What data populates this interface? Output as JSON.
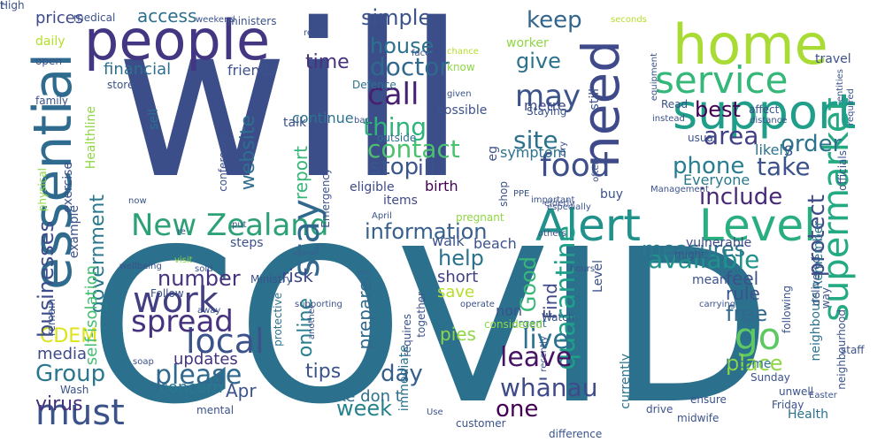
{
  "words": [
    {
      "text": "COVID",
      "color": "#2b708d"
    },
    {
      "text": "will",
      "color": "#3c4e8a"
    },
    {
      "text": "people",
      "color": "#433682"
    },
    {
      "text": "essential",
      "color": "#2f6b8e"
    },
    {
      "text": "home",
      "color": "#a8db34"
    },
    {
      "text": "need",
      "color": "#3f4a8a"
    },
    {
      "text": "supermarket",
      "color": "#24aa83"
    },
    {
      "text": "support",
      "color": "#1f9e89"
    },
    {
      "text": "Alert",
      "color": "#21918c"
    },
    {
      "text": "Level",
      "color": "#29af7f"
    },
    {
      "text": "New Zealand",
      "color": "#2da176"
    },
    {
      "text": "must",
      "color": "#3b528b"
    },
    {
      "text": "service",
      "color": "#35b779"
    },
    {
      "text": "food",
      "color": "#3c4f8a"
    },
    {
      "text": "call",
      "color": "#482071"
    },
    {
      "text": "stay",
      "color": "#31688e"
    },
    {
      "text": "local",
      "color": "#3b528b"
    },
    {
      "text": "work",
      "color": "#423f85"
    },
    {
      "text": "spread",
      "color": "#46327e"
    },
    {
      "text": "go",
      "color": "#5ec962"
    },
    {
      "text": "information",
      "color": "#355f8d"
    },
    {
      "text": "contact",
      "color": "#4ac16d"
    },
    {
      "text": "thing",
      "color": "#2fb47c"
    },
    {
      "text": "doctor",
      "color": "#31688e"
    },
    {
      "text": "house",
      "color": "#2c728e"
    },
    {
      "text": "may",
      "color": "#3b528b"
    },
    {
      "text": "keep",
      "color": "#32658e"
    },
    {
      "text": "area",
      "color": "#423f85"
    },
    {
      "text": "order",
      "color": "#2c738e"
    },
    {
      "text": "stop",
      "color": "#39568c"
    },
    {
      "text": "site",
      "color": "#2c728e"
    },
    {
      "text": "take",
      "color": "#3b528b"
    },
    {
      "text": "best",
      "color": "#440154"
    },
    {
      "text": "include",
      "color": "#482878"
    },
    {
      "text": "phone",
      "color": "#287d8e"
    },
    {
      "text": "protect",
      "color": "#3e4a89"
    },
    {
      "text": "available",
      "color": "#21918c"
    },
    {
      "text": "quarantine",
      "color": "#1f9e89"
    },
    {
      "text": "measures",
      "color": "#2a788e"
    },
    {
      "text": "live",
      "color": "#2c728e"
    },
    {
      "text": "leave",
      "color": "#471365"
    },
    {
      "text": "free",
      "color": "#31688e"
    },
    {
      "text": "please",
      "color": "#31688e"
    },
    {
      "text": "Group",
      "color": "#2a778e"
    },
    {
      "text": "day",
      "color": "#355e8d"
    },
    {
      "text": "week",
      "color": "#26828e"
    },
    {
      "text": "one",
      "color": "#440154"
    },
    {
      "text": "whānau",
      "color": "#3e4a89"
    },
    {
      "text": "CDEM",
      "color": "#dde318"
    },
    {
      "text": "businesses",
      "color": "#3d4d8a"
    },
    {
      "text": "government",
      "color": "#2a788e"
    },
    {
      "text": "website",
      "color": "#2e6e8e"
    },
    {
      "text": "report",
      "color": "#35b779"
    },
    {
      "text": "time",
      "color": "#46327e"
    },
    {
      "text": "simple",
      "color": "#3b528b"
    },
    {
      "text": "give",
      "color": "#2c728e"
    },
    {
      "text": "Good",
      "color": "#37b878"
    },
    {
      "text": "Find",
      "color": "#3f4889"
    },
    {
      "text": "help",
      "color": "#2c728e"
    },
    {
      "text": "number",
      "color": "#46327e"
    },
    {
      "text": "access",
      "color": "#2e6f8e"
    },
    {
      "text": "prices",
      "color": "#3e4a89"
    },
    {
      "text": "media",
      "color": "#3e4a89"
    },
    {
      "text": "virus",
      "color": "#472f7d"
    },
    {
      "text": "concern",
      "color": "#2a788e"
    },
    {
      "text": "updates",
      "color": "#46327e"
    },
    {
      "text": "rule",
      "color": "#3b528b"
    },
    {
      "text": "feel",
      "color": "#3b528b"
    },
    {
      "text": "place",
      "color": "#8fd744"
    },
    {
      "text": "risk",
      "color": "#3e4989"
    },
    {
      "text": "short",
      "color": "#424086"
    },
    {
      "text": "save",
      "color": "#b5de2b"
    },
    {
      "text": "prepared",
      "color": "#31688e"
    },
    {
      "text": "make don t",
      "color": "#2e6f8e"
    },
    {
      "text": "Apr",
      "color": "#3b528b"
    },
    {
      "text": "tips",
      "color": "#3b528b"
    },
    {
      "text": "online",
      "color": "#287d8e"
    },
    {
      "text": "friends",
      "color": "#3b528b"
    },
    {
      "text": "financial",
      "color": "#2e6f8e"
    },
    {
      "text": "continue",
      "color": "#2c728e"
    },
    {
      "text": "ill",
      "color": "#3b528b"
    },
    {
      "text": "birth",
      "color": "#440154"
    },
    {
      "text": "eligible",
      "color": "#3e4a89"
    },
    {
      "text": "walk",
      "color": "#3b528b"
    },
    {
      "text": "beach",
      "color": "#3b528b"
    },
    {
      "text": "symptom",
      "color": "#2c728e"
    },
    {
      "text": "metre",
      "color": "#3e4a89"
    },
    {
      "text": "Everyone",
      "color": "#2a788e"
    },
    {
      "text": "neighbours",
      "color": "#2c728e"
    },
    {
      "text": "Remember",
      "color": "#2a788e"
    },
    {
      "text": "vulnerable",
      "color": "#3e4a89"
    },
    {
      "text": "mean",
      "color": "#3b528b"
    },
    {
      "text": "self-isolation",
      "color": "#44bf70"
    },
    {
      "text": "Income",
      "color": "#2c728e"
    },
    {
      "text": "Health",
      "color": "#2c728e"
    },
    {
      "text": "Friday",
      "color": "#3b528b"
    },
    {
      "text": "currently",
      "color": "#2c728e"
    },
    {
      "text": "Watch",
      "color": "#3b528b"
    },
    {
      "text": "urgent",
      "color": "#2c728e"
    },
    {
      "text": "Level",
      "color": "#3b528b"
    },
    {
      "text": "likely",
      "color": "#2c728e"
    },
    {
      "text": "S",
      "color": "#3b528b"
    },
    {
      "text": "outside",
      "color": "#2c728e"
    },
    {
      "text": "items",
      "color": "#3e4a89"
    },
    {
      "text": "Emergency",
      "color": "#3b528b"
    },
    {
      "text": "Defence",
      "color": "#2c728e"
    },
    {
      "text": "conference",
      "color": "#3b528b"
    },
    {
      "text": "worker",
      "color": "#8fd744"
    },
    {
      "text": "store",
      "color": "#3b528b"
    },
    {
      "text": "travel",
      "color": "#3b528b"
    },
    {
      "text": "ministers",
      "color": "#3b528b"
    },
    {
      "text": "medical",
      "color": "#3b528b"
    },
    {
      "text": "daily",
      "color": "#b5de2b"
    },
    {
      "text": "family",
      "color": "#3b528b"
    },
    {
      "text": "physical",
      "color": "#8fd744"
    },
    {
      "text": "exercise",
      "color": "#3b528b"
    },
    {
      "text": "example",
      "color": "#3b528b"
    },
    {
      "text": "Healthline",
      "color": "#8fd744"
    },
    {
      "text": "sell",
      "color": "#2c728e"
    },
    {
      "text": "remain",
      "color": "#3b528b"
    },
    {
      "text": "open",
      "color": "#3b528b"
    },
    {
      "text": "steps",
      "color": "#3b528b"
    },
    {
      "text": "Follow",
      "color": "#3b528b"
    },
    {
      "text": "Ministry",
      "color": "#3b528b"
    },
    {
      "text": "protective",
      "color": "#2c728e"
    },
    {
      "text": "together",
      "color": "#3b528b"
    },
    {
      "text": "requires",
      "color": "#3b528b"
    },
    {
      "text": "immediate",
      "color": "#2c728e"
    },
    {
      "text": "considered",
      "color": "#8fd744"
    },
    {
      "text": "staff",
      "color": "#3b528b"
    },
    {
      "text": "delivered",
      "color": "#3b528b"
    },
    {
      "text": "following",
      "color": "#3b528b"
    },
    {
      "text": "way",
      "color": "#3b528b"
    },
    {
      "text": "neighbourhood",
      "color": "#3b528b"
    },
    {
      "text": "might",
      "color": "#3b528b"
    },
    {
      "text": "Sunday",
      "color": "#3b528b"
    },
    {
      "text": "unwell",
      "color": "#3b528b"
    },
    {
      "text": "drive",
      "color": "#3b528b"
    },
    {
      "text": "ensure",
      "color": "#3b528b"
    },
    {
      "text": "midwife",
      "color": "#3b528b"
    },
    {
      "text": "customer",
      "color": "#3b528b"
    },
    {
      "text": "difference",
      "color": "#3b528b"
    },
    {
      "text": "Wash",
      "color": "#3b528b"
    },
    {
      "text": "mental",
      "color": "#3b528b"
    },
    {
      "text": "weekend",
      "color": "#3b528b"
    },
    {
      "text": "reach",
      "color": "#3b528b"
    },
    {
      "text": "face",
      "color": "#3b528b"
    },
    {
      "text": "seconds",
      "color": "#b5de2b"
    },
    {
      "text": "chance",
      "color": "#b5de2b"
    },
    {
      "text": "know",
      "color": "#8fd744"
    },
    {
      "text": "equipment",
      "color": "#3b528b"
    },
    {
      "text": "entities",
      "color": "#3b528b"
    },
    {
      "text": "affect",
      "color": "#3b528b"
    },
    {
      "text": "distance",
      "color": "#3b528b"
    },
    {
      "text": "instead",
      "color": "#3b528b"
    },
    {
      "text": "required",
      "color": "#3b528b"
    },
    {
      "text": "Read",
      "color": "#3b528b"
    },
    {
      "text": "usual",
      "color": "#3b528b"
    },
    {
      "text": "Management",
      "color": "#3b528b"
    },
    {
      "text": "officials",
      "color": "#3b528b"
    },
    {
      "text": "given",
      "color": "#3b528b"
    },
    {
      "text": "bag",
      "color": "#3b528b"
    },
    {
      "text": "shop",
      "color": "#3b528b"
    },
    {
      "text": "dry",
      "color": "#3b528b"
    },
    {
      "text": "important",
      "color": "#3b528b"
    },
    {
      "text": "PPE",
      "color": "#3b528b"
    },
    {
      "text": "often",
      "color": "#3b528b"
    },
    {
      "text": "especially",
      "color": "#3b528b"
    },
    {
      "text": "elderly",
      "color": "#3b528b"
    },
    {
      "text": "April",
      "color": "#3b528b"
    },
    {
      "text": "pregnant",
      "color": "#8fd744"
    },
    {
      "text": "others",
      "color": "#3b528b"
    },
    {
      "text": "buy",
      "color": "#3b528b"
    },
    {
      "text": "eg",
      "color": "#3b528b"
    },
    {
      "text": "Staying",
      "color": "#3b528b"
    },
    {
      "text": "still",
      "color": "#3b528b"
    },
    {
      "text": "possible",
      "color": "#3b528b"
    },
    {
      "text": "talk",
      "color": "#3b528b"
    },
    {
      "text": "now",
      "color": "#3b528b"
    },
    {
      "text": "re",
      "color": "#3b528b"
    },
    {
      "text": "put",
      "color": "#3b528b"
    },
    {
      "text": "wellbeing",
      "color": "#3b528b"
    },
    {
      "text": "visit",
      "color": "#8fd744"
    },
    {
      "text": "sold",
      "color": "#3b528b"
    },
    {
      "text": "away",
      "color": "#3b528b"
    },
    {
      "text": "hours",
      "color": "#3b528b"
    },
    {
      "text": "carrying",
      "color": "#3b528b"
    },
    {
      "text": "supporting",
      "color": "#3b528b"
    },
    {
      "text": "another",
      "color": "#3b528b"
    },
    {
      "text": "operate",
      "color": "#3b528b"
    },
    {
      "text": "recently",
      "color": "#3b528b"
    },
    {
      "text": "soap",
      "color": "#3b528b"
    },
    {
      "text": "Use",
      "color": "#3b528b"
    },
    {
      "text": "Easter",
      "color": "#3b528b"
    },
    {
      "text": "non",
      "color": "#3b528b"
    },
    {
      "text": "pies",
      "color": "#8fd744"
    },
    {
      "text": "High",
      "color": "#3b528b"
    },
    {
      "text": "t",
      "color": "#3b528b"
    },
    {
      "text": "t",
      "color": "#3b528b"
    }
  ]
}
